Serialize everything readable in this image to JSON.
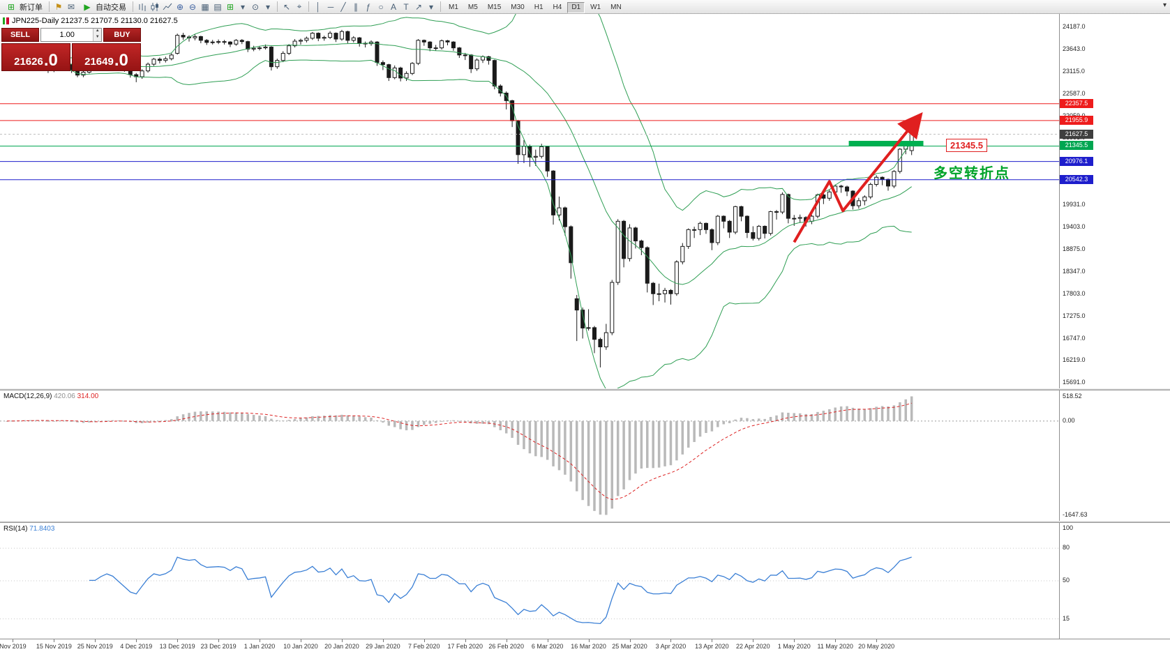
{
  "toolbar": {
    "new_order_label": "新订单",
    "autotrading_label": "自动交易",
    "timeframes": [
      "M1",
      "M5",
      "M15",
      "M30",
      "H1",
      "H4",
      "D1",
      "W1",
      "MN"
    ],
    "active_timeframe": "D1"
  },
  "icons": {
    "new_order": "⊞",
    "alerts": "⚑",
    "mail": "✉",
    "autoplay": "▶",
    "zoom_in": "⊕",
    "zoom_out": "⊖",
    "tile_windows": "▦",
    "cascade_windows": "▤",
    "new_chart": "⊞",
    "profiles": "⊙",
    "caret": "▾",
    "cursor": "↖",
    "crosshair": "⌖",
    "vline": "│",
    "hline": "─",
    "trendline": "╱",
    "channel": "∥",
    "fibonacci": "ƒ",
    "shapes": "○",
    "text": "A",
    "text_label": "T",
    "arrows": "↗",
    "overflow": "▾"
  },
  "symbol_info": "JPN225-Daily  21237.5 21707.5 21130.0 21627.5",
  "trade_panel": {
    "sell_label": "SELL",
    "buy_label": "BUY",
    "volume": "1.00",
    "sell_price": {
      "main": "21626",
      "big": ".0"
    },
    "buy_price": {
      "main": "21649",
      "big": ".0"
    }
  },
  "annotations": {
    "level_label": "21345.5",
    "cn_text": "多空转折点"
  },
  "colors": {
    "bull": "#ffffff",
    "bear": "#1a1a1a",
    "wick": "#1a1a1a",
    "band": "#2e9e53",
    "red_line": "#ee1c1c",
    "green_line": "#00a651",
    "blue_line": "#1e1ecc",
    "tag_dark": "#3f3f3f",
    "histogram": "#b9b9b9",
    "macd_signal": "#dd2222",
    "rsi_line": "#3a7fd5",
    "arrow": "#e01f1f",
    "box": "#00b050"
  },
  "chart_data": {
    "type": "candlestick",
    "title": "JPN225-Daily",
    "symbol": "JPN225",
    "timeframe": "Daily",
    "price_range": [
      15560,
      24500
    ],
    "scale_ticks": [
      24187,
      23643,
      23115,
      22587,
      22059,
      21531,
      21003,
      20475,
      19931,
      19403,
      18875,
      18347,
      17803,
      17275,
      16747,
      16219,
      15691
    ],
    "levels": [
      {
        "price": 22357.5,
        "label": "22357.5",
        "color": "#ee1c1c",
        "line": true
      },
      {
        "price": 21955.9,
        "label": "21955.9",
        "color": "#ee1c1c",
        "line": true
      },
      {
        "price": 21627.5,
        "label": "21627.5",
        "color": "#3f3f3f",
        "line": false,
        "current": true
      },
      {
        "price": 21345.5,
        "label": "21345.5",
        "color": "#00a651",
        "line": true
      },
      {
        "price": 20976.1,
        "label": "20976.1",
        "color": "#1e1ecc",
        "line": true
      },
      {
        "price": 20542.3,
        "label": "20542.3",
        "color": "#1e1ecc",
        "line": true
      }
    ],
    "bollinger": {
      "period": 20,
      "deviation": 2
    },
    "highlight_box": {
      "from_idx": 143.3,
      "to_idx": 156,
      "top_price": 21470,
      "bottom_price": 21350
    },
    "trend_arrow": {
      "points": [
        [
          134,
          19050
        ],
        [
          140,
          20500
        ],
        [
          142.3,
          19800
        ],
        [
          155,
          22000
        ]
      ]
    },
    "time_labels": [
      "Nov 2019",
      "15 Nov 2019",
      "25 Nov 2019",
      "4 Dec 2019",
      "13 Dec 2019",
      "23 Dec 2019",
      "1 Jan 2020",
      "10 Jan 2020",
      "20 Jan 2020",
      "29 Jan 2020",
      "7 Feb 2020",
      "17 Feb 2020",
      "26 Feb 2020",
      "6 Mar 2020",
      "16 Mar 2020",
      "25 Mar 2020",
      "3 Apr 2020",
      "13 Apr 2020",
      "22 Apr 2020",
      "1 May 2020",
      "11 May 2020",
      "20 May 2020"
    ],
    "label_start_idx": 1,
    "label_step": 7,
    "macd": {
      "label": "MACD(12,26,9)",
      "value_main": "420.06",
      "value_signal": "314.00",
      "scale_labels": {
        "max": "518.52",
        "zero": "0.00",
        "min": "-1647.63"
      }
    },
    "rsi": {
      "label": "RSI(14)",
      "value": "71.8403",
      "scale": [
        {
          "label": "100",
          "value": 100
        },
        {
          "label": "80",
          "value": 80
        },
        {
          "label": "50",
          "value": 50
        },
        {
          "label": "15",
          "value": 15
        }
      ]
    },
    "candles": [
      [
        23250,
        23320,
        23200,
        23280
      ],
      [
        23280,
        23360,
        23230,
        23310
      ],
      [
        23310,
        23400,
        23270,
        23350
      ],
      [
        23350,
        23430,
        23310,
        23390
      ],
      [
        23390,
        23420,
        23280,
        23330
      ],
      [
        23330,
        23390,
        23280,
        23340
      ],
      [
        23340,
        23380,
        23260,
        23320
      ],
      [
        23320,
        23340,
        23090,
        23150
      ],
      [
        23150,
        23340,
        23110,
        23300
      ],
      [
        23300,
        23440,
        23260,
        23400
      ],
      [
        23400,
        23430,
        23240,
        23290
      ],
      [
        23290,
        23310,
        23090,
        23150
      ],
      [
        23150,
        23180,
        22990,
        23040
      ],
      [
        23040,
        23150,
        22990,
        23110
      ],
      [
        23110,
        23330,
        23080,
        23290
      ],
      [
        23290,
        23340,
        23210,
        23290
      ],
      [
        23290,
        23410,
        23250,
        23370
      ],
      [
        23370,
        23470,
        23330,
        23430
      ],
      [
        23430,
        23460,
        23330,
        23390
      ],
      [
        23390,
        23420,
        23230,
        23290
      ],
      [
        23290,
        23320,
        23120,
        23180
      ],
      [
        23180,
        23210,
        22980,
        23050
      ],
      [
        23050,
        23090,
        22870,
        23000
      ],
      [
        23000,
        23180,
        22950,
        23140
      ],
      [
        23140,
        23340,
        23100,
        23300
      ],
      [
        23300,
        23450,
        23260,
        23420
      ],
      [
        23420,
        23460,
        23320,
        23390
      ],
      [
        23390,
        23480,
        23340,
        23430
      ],
      [
        23430,
        23560,
        23390,
        23520
      ],
      [
        23560,
        24030,
        23530,
        23990
      ],
      [
        23990,
        24050,
        23880,
        23950
      ],
      [
        23950,
        23990,
        23840,
        23930
      ],
      [
        23930,
        24010,
        23870,
        23960
      ],
      [
        23960,
        23980,
        23800,
        23870
      ],
      [
        23870,
        23900,
        23760,
        23820
      ],
      [
        23820,
        23880,
        23770,
        23830
      ],
      [
        23830,
        23890,
        23780,
        23840
      ],
      [
        23840,
        23880,
        23770,
        23830
      ],
      [
        23830,
        23850,
        23710,
        23780
      ],
      [
        23780,
        23900,
        23740,
        23870
      ],
      [
        23870,
        23900,
        23780,
        23840
      ],
      [
        23840,
        23860,
        23590,
        23660
      ],
      [
        23660,
        23740,
        23610,
        23680
      ],
      [
        23680,
        23730,
        23630,
        23690
      ],
      [
        23690,
        23770,
        23650,
        23710
      ],
      [
        23710,
        23730,
        23150,
        23240
      ],
      [
        23240,
        23430,
        23190,
        23390
      ],
      [
        23390,
        23610,
        23350,
        23560
      ],
      [
        23560,
        23780,
        23520,
        23740
      ],
      [
        23740,
        23900,
        23700,
        23850
      ],
      [
        23850,
        23910,
        23770,
        23870
      ],
      [
        23870,
        23960,
        23820,
        23920
      ],
      [
        23920,
        24070,
        23880,
        24040
      ],
      [
        24040,
        24060,
        23850,
        23920
      ],
      [
        23920,
        23980,
        23860,
        23940
      ],
      [
        23940,
        24090,
        23900,
        24040
      ],
      [
        24040,
        24060,
        23830,
        23900
      ],
      [
        23900,
        24120,
        23860,
        24080
      ],
      [
        24080,
        24100,
        23800,
        23870
      ],
      [
        23870,
        23970,
        23820,
        23930
      ],
      [
        23930,
        23950,
        23720,
        23800
      ],
      [
        23800,
        23840,
        23700,
        23790
      ],
      [
        23790,
        23870,
        23740,
        23830
      ],
      [
        23830,
        23850,
        23260,
        23340
      ],
      [
        23340,
        23390,
        23160,
        23290
      ],
      [
        23290,
        23310,
        22900,
        22980
      ],
      [
        22980,
        23270,
        22940,
        23210
      ],
      [
        23210,
        23240,
        22890,
        22970
      ],
      [
        22970,
        23130,
        22900,
        23080
      ],
      [
        23080,
        23350,
        23040,
        23320
      ],
      [
        23320,
        23900,
        23280,
        23870
      ],
      [
        23870,
        23890,
        23740,
        23830
      ],
      [
        23830,
        23850,
        23610,
        23690
      ],
      [
        23690,
        23760,
        23620,
        23690
      ],
      [
        23690,
        23890,
        23650,
        23860
      ],
      [
        23860,
        23880,
        23750,
        23830
      ],
      [
        23830,
        23850,
        23620,
        23690
      ],
      [
        23690,
        23710,
        23450,
        23520
      ],
      [
        23520,
        23570,
        23400,
        23520
      ],
      [
        23520,
        23540,
        23090,
        23190
      ],
      [
        23190,
        23440,
        23140,
        23400
      ],
      [
        23400,
        23510,
        23330,
        23480
      ],
      [
        23480,
        23500,
        23290,
        23390
      ],
      [
        23390,
        23410,
        22700,
        22780
      ],
      [
        22780,
        22820,
        22530,
        22610
      ],
      [
        22610,
        22650,
        22220,
        22430
      ],
      [
        22430,
        22450,
        21800,
        21950
      ],
      [
        21950,
        21970,
        20920,
        21140
      ],
      [
        21140,
        21490,
        20940,
        21340
      ],
      [
        21340,
        21380,
        20850,
        21080
      ],
      [
        21080,
        21260,
        20870,
        21100
      ],
      [
        21100,
        21400,
        21050,
        21330
      ],
      [
        21330,
        21350,
        20610,
        20750
      ],
      [
        20750,
        20770,
        19470,
        19700
      ],
      [
        19700,
        20140,
        19570,
        19870
      ],
      [
        19870,
        19900,
        19210,
        19420
      ],
      [
        19420,
        19450,
        18180,
        18560
      ],
      [
        17700,
        17790,
        16690,
        17430
      ],
      [
        17430,
        17490,
        16750,
        17000
      ],
      [
        17000,
        17450,
        16940,
        17010
      ],
      [
        17010,
        17050,
        16400,
        16730
      ],
      [
        16730,
        16770,
        16060,
        16550
      ],
      [
        16550,
        17100,
        16480,
        16890
      ],
      [
        16890,
        18150,
        16830,
        18090
      ],
      [
        18090,
        19600,
        18030,
        19550
      ],
      [
        19550,
        19580,
        18450,
        18660
      ],
      [
        18660,
        19480,
        18590,
        19390
      ],
      [
        19390,
        19420,
        18900,
        19080
      ],
      [
        19080,
        19110,
        18740,
        18920
      ],
      [
        18920,
        18950,
        17850,
        18070
      ],
      [
        18070,
        18100,
        17550,
        17820
      ],
      [
        17820,
        18060,
        17640,
        17820
      ],
      [
        17820,
        17960,
        17610,
        17900
      ],
      [
        17900,
        17930,
        17560,
        17820
      ],
      [
        17820,
        18620,
        17770,
        18580
      ],
      [
        18580,
        19030,
        18520,
        18950
      ],
      [
        18950,
        19380,
        18890,
        19350
      ],
      [
        19350,
        19420,
        19150,
        19350
      ],
      [
        19350,
        19540,
        19220,
        19500
      ],
      [
        19500,
        19520,
        19250,
        19350
      ],
      [
        19350,
        19380,
        18860,
        19040
      ],
      [
        19040,
        19700,
        18980,
        19670
      ],
      [
        19670,
        19690,
        19380,
        19550
      ],
      [
        19550,
        19580,
        19150,
        19290
      ],
      [
        19290,
        19920,
        19240,
        19900
      ],
      [
        19900,
        19920,
        19550,
        19670
      ],
      [
        19670,
        19690,
        19150,
        19280
      ],
      [
        19280,
        19430,
        19090,
        19140
      ],
      [
        19140,
        19460,
        19090,
        19430
      ],
      [
        19430,
        19450,
        19140,
        19260
      ],
      [
        19260,
        19800,
        19210,
        19780
      ],
      [
        19780,
        19820,
        19590,
        19770
      ],
      [
        19770,
        20240,
        19720,
        20190
      ],
      [
        20190,
        20210,
        19500,
        19620
      ],
      [
        19620,
        19700,
        19440,
        19620
      ],
      [
        19620,
        19710,
        19510,
        19640
      ],
      [
        19640,
        19670,
        19420,
        19550
      ],
      [
        19550,
        19700,
        19480,
        19670
      ],
      [
        19670,
        20210,
        19620,
        20180
      ],
      [
        20180,
        20220,
        19960,
        20100
      ],
      [
        20100,
        20300,
        20040,
        20250
      ],
      [
        20250,
        20430,
        20190,
        20390
      ],
      [
        20390,
        20420,
        20230,
        20370
      ],
      [
        20370,
        20400,
        20150,
        20270
      ],
      [
        20270,
        20290,
        19830,
        19920
      ],
      [
        19920,
        20110,
        19850,
        20040
      ],
      [
        20040,
        20170,
        19930,
        20130
      ],
      [
        20130,
        20470,
        20080,
        20430
      ],
      [
        20430,
        20650,
        20380,
        20600
      ],
      [
        20600,
        20620,
        20410,
        20550
      ],
      [
        20550,
        20570,
        20280,
        20390
      ],
      [
        20390,
        20770,
        20340,
        20740
      ],
      [
        20740,
        21300,
        20690,
        21270
      ],
      [
        21270,
        21470,
        21150,
        21420
      ],
      [
        21237.5,
        21707.5,
        21130,
        21627.5
      ]
    ]
  }
}
